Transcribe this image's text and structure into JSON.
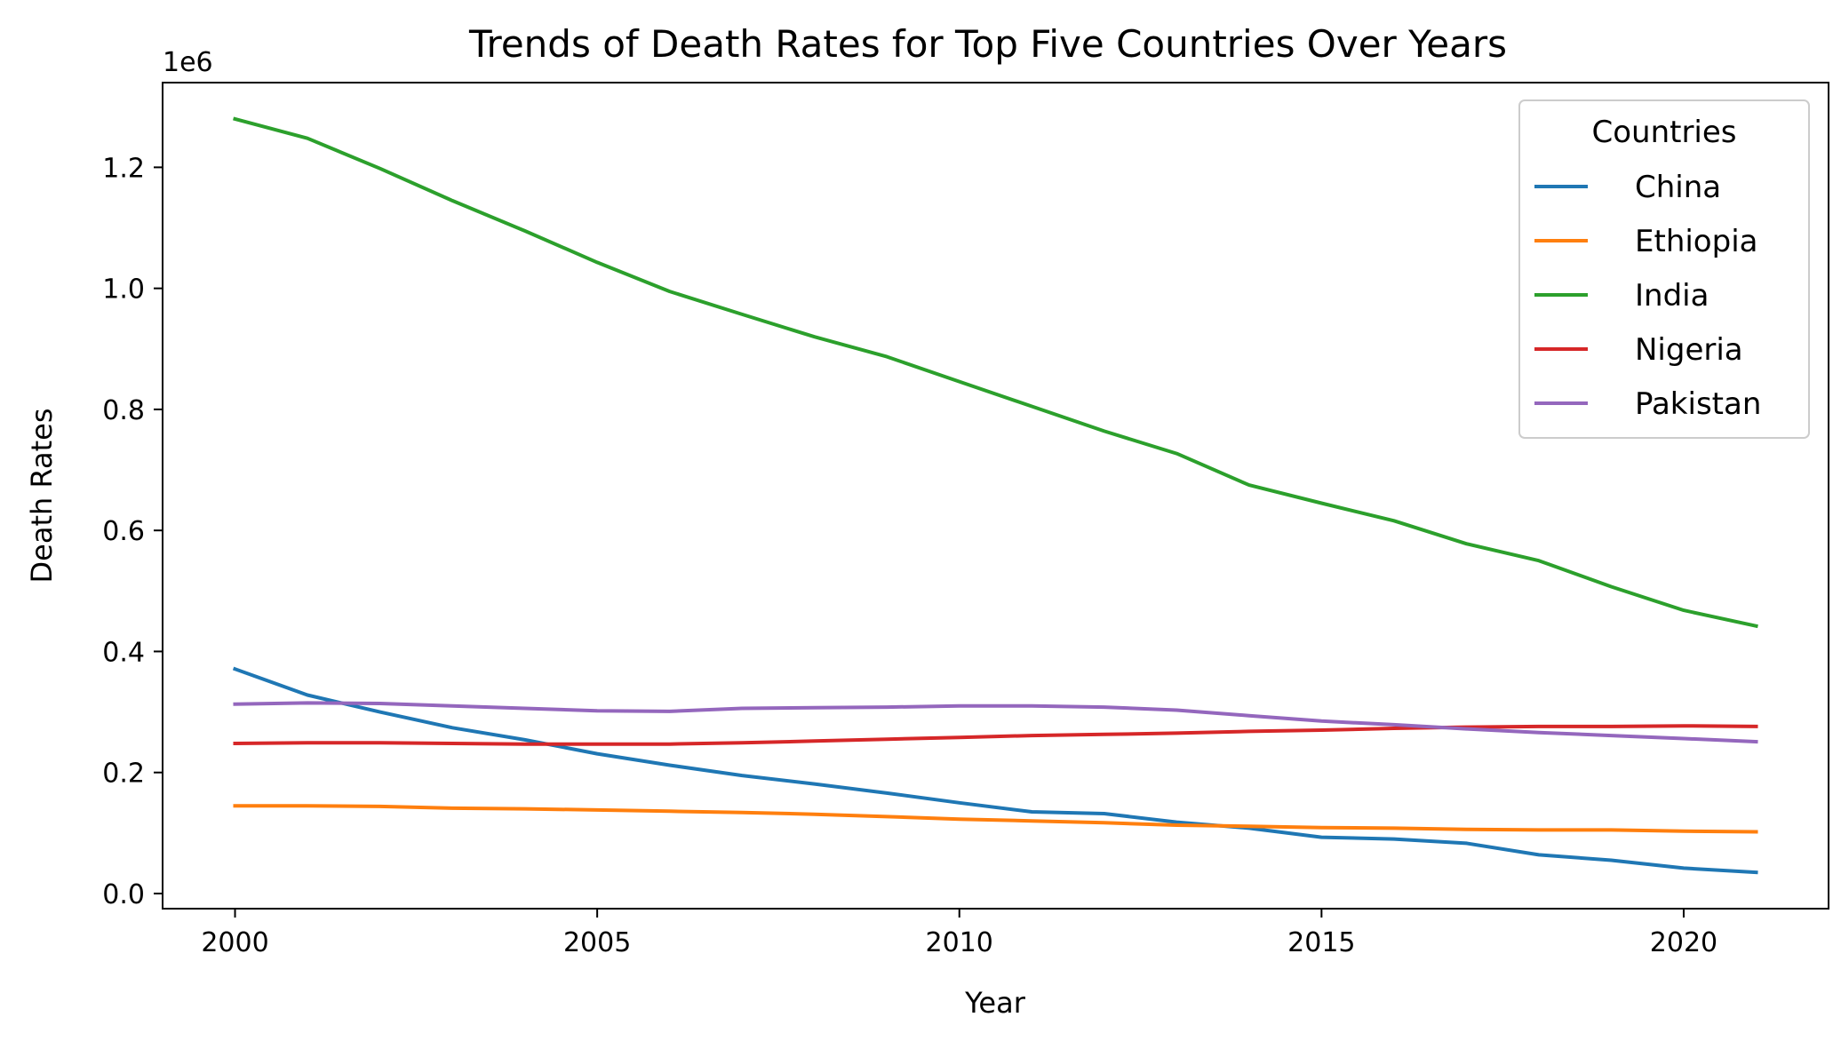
{
  "chart_data": {
    "type": "line",
    "title": "Trends of Death Rates for Top Five Countries Over Years",
    "xlabel": "Year",
    "ylabel": "Death Rates",
    "y_offset_label": "1e6",
    "xlim": [
      1999,
      2022
    ],
    "ylim": [
      -0.025,
      1.34
    ],
    "x_ticks": [
      2000,
      2005,
      2010,
      2015,
      2020
    ],
    "x_tick_labels": [
      "2000",
      "2005",
      "2010",
      "2015",
      "2020"
    ],
    "y_ticks": [
      0.0,
      0.2,
      0.4,
      0.6,
      0.8,
      1.0,
      1.2
    ],
    "y_tick_labels": [
      "0.0",
      "0.2",
      "0.4",
      "0.6",
      "0.8",
      "1.0",
      "1.2"
    ],
    "grid": false,
    "legend": {
      "title": "Countries",
      "placement": "top-right"
    },
    "x": [
      2000,
      2001,
      2002,
      2003,
      2004,
      2005,
      2006,
      2007,
      2008,
      2009,
      2010,
      2011,
      2012,
      2013,
      2014,
      2015,
      2016,
      2017,
      2018,
      2019,
      2020,
      2021
    ],
    "series": [
      {
        "name": "China",
        "color": "#1f77b4",
        "values": [
          0.371,
          0.328,
          0.3,
          0.274,
          0.254,
          0.231,
          0.212,
          0.195,
          0.181,
          0.166,
          0.15,
          0.135,
          0.132,
          0.118,
          0.108,
          0.093,
          0.09,
          0.083,
          0.064,
          0.055,
          0.042,
          0.035
        ]
      },
      {
        "name": "Ethiopia",
        "color": "#ff7f0e",
        "values": [
          0.145,
          0.145,
          0.144,
          0.141,
          0.14,
          0.138,
          0.136,
          0.134,
          0.131,
          0.127,
          0.123,
          0.12,
          0.117,
          0.113,
          0.111,
          0.109,
          0.108,
          0.106,
          0.105,
          0.105,
          0.103,
          0.102
        ]
      },
      {
        "name": "India",
        "color": "#2ca02c",
        "values": [
          1.28,
          1.248,
          1.198,
          1.145,
          1.095,
          1.043,
          0.995,
          0.957,
          0.92,
          0.887,
          0.846,
          0.805,
          0.764,
          0.727,
          0.675,
          0.645,
          0.616,
          0.578,
          0.55,
          0.507,
          0.468,
          0.442
        ]
      },
      {
        "name": "Nigeria",
        "color": "#d62728",
        "values": [
          0.248,
          0.249,
          0.249,
          0.248,
          0.247,
          0.247,
          0.247,
          0.249,
          0.252,
          0.255,
          0.258,
          0.261,
          0.263,
          0.265,
          0.268,
          0.27,
          0.273,
          0.275,
          0.276,
          0.276,
          0.277,
          0.276
        ]
      },
      {
        "name": "Pakistan",
        "color": "#9467bd",
        "values": [
          0.313,
          0.315,
          0.314,
          0.31,
          0.306,
          0.302,
          0.301,
          0.306,
          0.307,
          0.308,
          0.31,
          0.31,
          0.308,
          0.303,
          0.294,
          0.285,
          0.279,
          0.272,
          0.266,
          0.261,
          0.256,
          0.251
        ]
      }
    ]
  }
}
